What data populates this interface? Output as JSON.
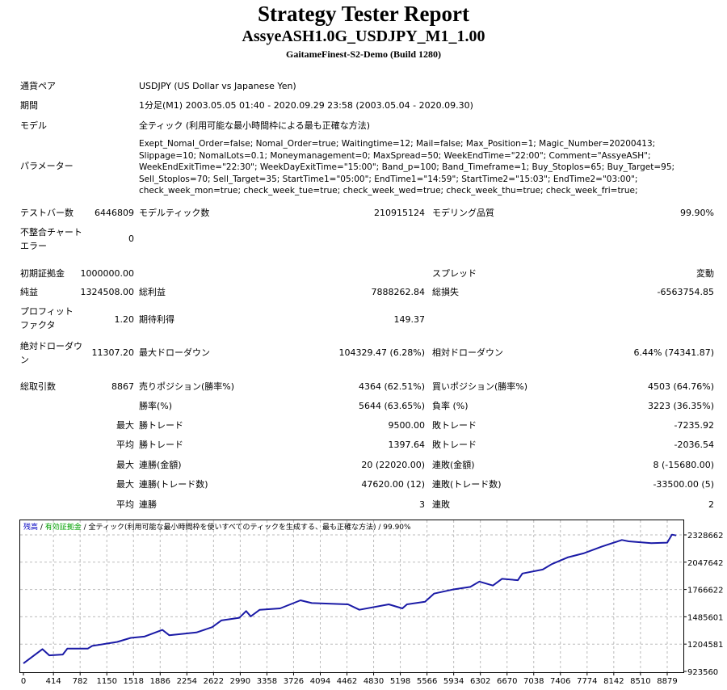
{
  "header": {
    "title": "Strategy Tester Report",
    "subtitle": "AssyeASH1.0G_USDJPY_M1_1.00",
    "server": "GaitameFinest-S2-Demo (Build 1280)"
  },
  "info": {
    "symbol_label": "通貨ペア",
    "symbol_value": "USDJPY (US Dollar vs Japanese Yen)",
    "period_label": "期間",
    "period_value": "1分足(M1) 2003.05.05 01:40 - 2020.09.29 23:58 (2003.05.04 - 2020.09.30)",
    "model_label": "モデル",
    "model_value": "全ティック (利用可能な最小時間枠による最も正確な方法)",
    "params_label": "パラメーター",
    "params_value": "Exept_Nomal_Order=false; Nomal_Order=true; Waitingtime=12; Mail=false; Max_Position=1; Magic_Number=20200413; Slippage=10; NomalLots=0.1; Moneymanagement=0; MaxSpread=50; WeekEndTime=\"22:00\"; Comment=\"AssyeASH\"; WeekEndExitTime=\"22:30\"; WeekDayExitTime=\"15:00\"; Band_p=100; Band_Timeframe=1; Buy_Stoplos=65; Buy_Target=95; Sell_Stoplos=70; Sell_Target=35; StartTime1=\"05:00\"; EndTime1=\"14:59\"; StartTime2=\"15:03\"; EndTime2=\"03:00\"; check_week_mon=true; check_week_tue=true; check_week_wed=true; check_week_thu=true; check_week_fri=true;"
  },
  "stats": {
    "bars_label": "テストバー数",
    "bars_value": "6446809",
    "ticks_label": "モデルティック数",
    "ticks_value": "210915124",
    "quality_label": "モデリング品質",
    "quality_value": "99.90%",
    "mismatch_label": "不整合チャートエラー",
    "mismatch_value": "0",
    "deposit_label": "初期証拠金",
    "deposit_value": "1000000.00",
    "spread_label": "スプレッド",
    "spread_value": "変動",
    "net_label": "純益",
    "net_value": "1324508.00",
    "gross_profit_label": "総利益",
    "gross_profit_value": "7888262.84",
    "gross_loss_label": "総損失",
    "gross_loss_value": "-6563754.85",
    "pf_label": "プロフィットファクタ",
    "pf_value": "1.20",
    "expected_label": "期待利得",
    "expected_value": "149.37",
    "abs_dd_label": "絶対ドローダウン",
    "abs_dd_value": "11307.20",
    "max_dd_label": "最大ドローダウン",
    "max_dd_value": "104329.47 (6.28%)",
    "rel_dd_label": "相対ドローダウン",
    "rel_dd_value": "6.44% (74341.87)",
    "trades_label": "総取引数",
    "trades_value": "8867",
    "short_label": "売りポジション(勝率%)",
    "short_value": "4364 (62.51%)",
    "long_label": "買いポジション(勝率%)",
    "long_value": "4503 (64.76%)",
    "win_label": "勝率(%)",
    "win_value": "5644 (63.65%)",
    "loss_label": "負率 (%)",
    "loss_value": "3223 (36.35%)",
    "max_label": "最大",
    "avg_label": "平均",
    "largest_win_label": "勝トレード",
    "largest_win_value": "9500.00",
    "largest_loss_label": "敗トレード",
    "largest_loss_value": "-7235.92",
    "avg_win_label": "勝トレード",
    "avg_win_value": "1397.64",
    "avg_loss_label": "敗トレード",
    "avg_loss_value": "-2036.54",
    "max_cons_wins_label": "連勝(金額)",
    "max_cons_wins_value": "20 (22020.00)",
    "max_cons_losses_label": "連敗(金額)",
    "max_cons_losses_value": "8 (-15680.00)",
    "max_cons_profit_label": "連勝(トレード数)",
    "max_cons_profit_value": "47620.00 (12)",
    "max_cons_loss_label": "連敗(トレード数)",
    "max_cons_loss_value": "-33500.00 (5)",
    "avg_cons_wins_label": "連勝",
    "avg_cons_wins_value": "3",
    "avg_cons_losses_label": "連敗",
    "avg_cons_losses_value": "2"
  },
  "chart_legend": {
    "balance": "残高",
    "sep": " / ",
    "equity": "有効証拠金",
    "rest": " / 全ティック(利用可能な最小時間枠を使いすべてのティックを生成する、最も正確な方法) / 99.90%",
    "balance_color": "#0000c0",
    "equity_color": "#00a000"
  },
  "chart_data": {
    "type": "line",
    "title": "",
    "xlabel": "",
    "ylabel": "",
    "xlim": [
      0,
      9100
    ],
    "ylim": [
      923560,
      2484000
    ],
    "x_ticks": [
      0,
      414,
      782,
      1150,
      1518,
      1886,
      2254,
      2622,
      2990,
      3358,
      3726,
      4094,
      4462,
      4830,
      5198,
      5566,
      5934,
      6302,
      6670,
      7038,
      7406,
      7774,
      8142,
      8510,
      8879
    ],
    "y_ticks": [
      923560,
      1204581,
      1485601,
      1766622,
      2047642,
      2328662
    ],
    "grid": true,
    "series": [
      {
        "name": "残高",
        "color": "#1a1aa6",
        "x": [
          0,
          262,
          356,
          543,
          606,
          887,
          949,
          1293,
          1480,
          1667,
          1917,
          2011,
          2385,
          2604,
          2729,
          2978,
          3072,
          3135,
          3259,
          3540,
          3821,
          3977,
          4477,
          4633,
          5039,
          5226,
          5289,
          5539,
          5663,
          5913,
          6163,
          6288,
          6475,
          6600,
          6819,
          6881,
          7162,
          7287,
          7505,
          7724,
          7974,
          8254,
          8348,
          8660,
          8879,
          8944,
          9004
        ],
        "y": [
          1006000,
          1153000,
          1089000,
          1097000,
          1158000,
          1158000,
          1186000,
          1227000,
          1269000,
          1282000,
          1351000,
          1296000,
          1324000,
          1379000,
          1448000,
          1476000,
          1545000,
          1490000,
          1558000,
          1572000,
          1655000,
          1627000,
          1614000,
          1558000,
          1614000,
          1572000,
          1614000,
          1641000,
          1724000,
          1765000,
          1793000,
          1848000,
          1807000,
          1876000,
          1862000,
          1931000,
          1972000,
          2028000,
          2097000,
          2138000,
          2207000,
          2276000,
          2262000,
          2243000,
          2249000,
          2331000,
          2323000
        ]
      }
    ]
  }
}
